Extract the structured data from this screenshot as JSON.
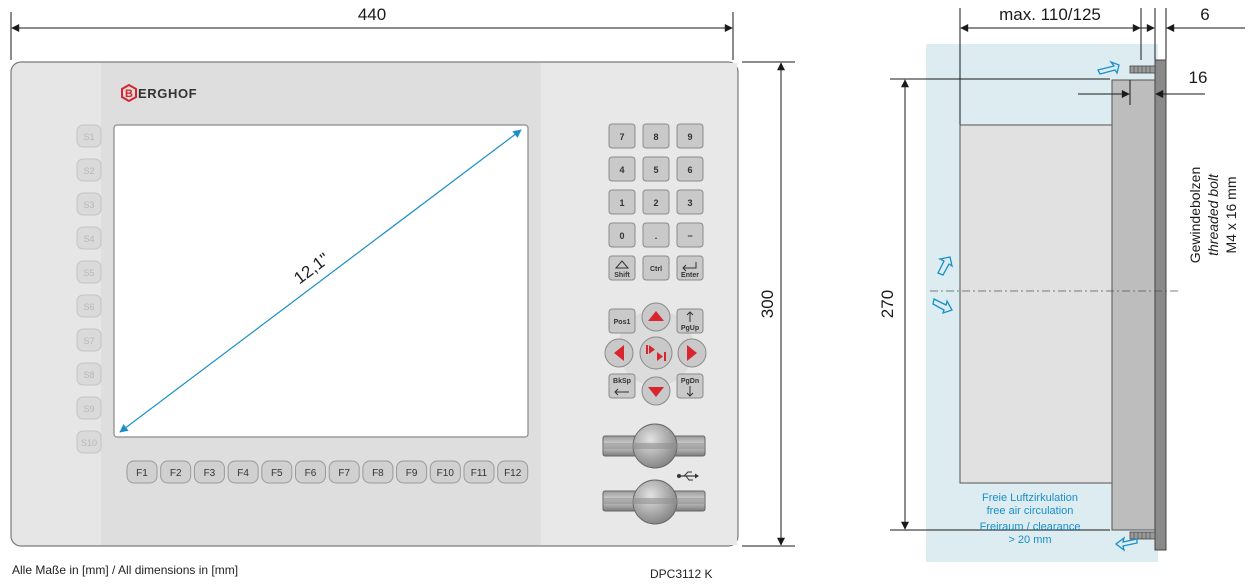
{
  "dimensions": {
    "width": "440",
    "height": "300",
    "depth": "max. 110/125",
    "panel_thickness": "6",
    "bolt_length": "16",
    "cutout_height": "270",
    "diagonal": "12,1\""
  },
  "brand": {
    "logo_letter": "B",
    "name_rest": "ERGHOF"
  },
  "bolt_label": {
    "de": "Gewindebolzen",
    "en": "threaded bolt",
    "size": "M4 x 16 mm"
  },
  "airflow": {
    "line1": "Freie Luftzirkulation",
    "line2": "free air circulation",
    "line3": "Freiraum / clearance",
    "line4": "> 20 mm"
  },
  "footer": {
    "units_note": "Alle Maße in [mm] / All dimensions in [mm]",
    "model": "DPC3112 K"
  },
  "soft_keys": [
    "S1",
    "S2",
    "S3",
    "S4",
    "S5",
    "S6",
    "S7",
    "S8",
    "S9",
    "S10"
  ],
  "function_keys": [
    "F1",
    "F2",
    "F3",
    "F4",
    "F5",
    "F6",
    "F7",
    "F8",
    "F9",
    "F10",
    "F11",
    "F12"
  ],
  "keypad": {
    "rows": [
      [
        "7",
        "8",
        "9"
      ],
      [
        "4",
        "5",
        "6"
      ],
      [
        "1",
        "2",
        "3"
      ],
      [
        "0",
        ".",
        "−"
      ]
    ],
    "shift": "Shift",
    "ctrl": "Ctrl",
    "enter": "Enter",
    "pos1": "Pos1",
    "pgup": "PgUp",
    "bksp": "BkSp",
    "pgdn": "PgDn"
  },
  "colors": {
    "accent_red": "#d8262e",
    "dimension_blue": "#1a8fc9",
    "clearance_zone": "#dcecf0"
  }
}
